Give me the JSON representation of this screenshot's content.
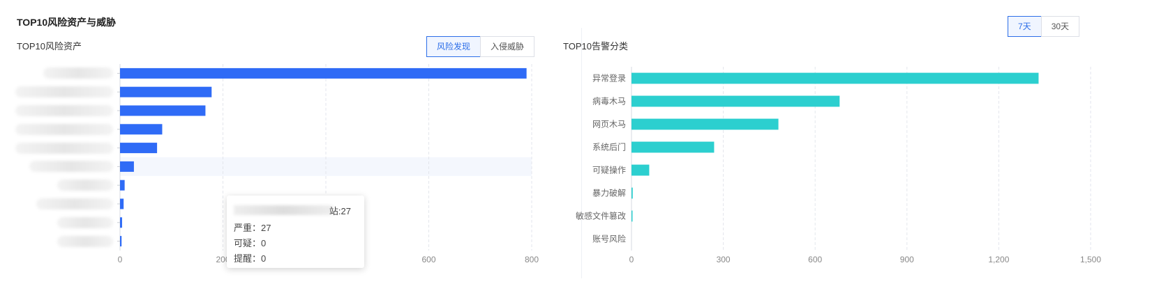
{
  "page_title": "TOP10风险资产与威胁",
  "period_toggle": {
    "options": [
      "7天",
      "30天"
    ],
    "selected": "7天"
  },
  "left_panel": {
    "subtitle": "TOP10风险资产",
    "tabs": [
      "风险发现",
      "入侵威胁"
    ],
    "selected_tab": "风险发现"
  },
  "right_panel": {
    "subtitle": "TOP10告警分类"
  },
  "tooltip": {
    "header_suffix": "站:27",
    "rows": [
      {
        "label": "严重",
        "value": "27"
      },
      {
        "label": "可疑",
        "value": "0"
      },
      {
        "label": "提醒",
        "value": "0"
      }
    ]
  },
  "chart_data": [
    {
      "type": "bar",
      "orientation": "horizontal",
      "categories_hidden": true,
      "values": [
        790,
        178,
        166,
        82,
        72,
        27,
        9,
        7,
        4,
        3
      ],
      "xlim": [
        0,
        800
      ],
      "x_ticks": [
        "0",
        "200",
        "400",
        "600",
        "800"
      ],
      "grid": true,
      "color": "#2f6bf6",
      "highlight_index": 5
    },
    {
      "type": "bar",
      "orientation": "horizontal",
      "categories": [
        "异常登录",
        "病毒木马",
        "网页木马",
        "系统后门",
        "可疑操作",
        "暴力破解",
        "敏感文件篡改",
        "账号风险"
      ],
      "values": [
        1330,
        680,
        480,
        270,
        58,
        4,
        2,
        0
      ],
      "xlim": [
        0,
        1500
      ],
      "x_ticks": [
        "0",
        "300",
        "600",
        "900",
        "1,200",
        "1,500"
      ],
      "grid": true,
      "color": "#2ccfcf"
    }
  ]
}
